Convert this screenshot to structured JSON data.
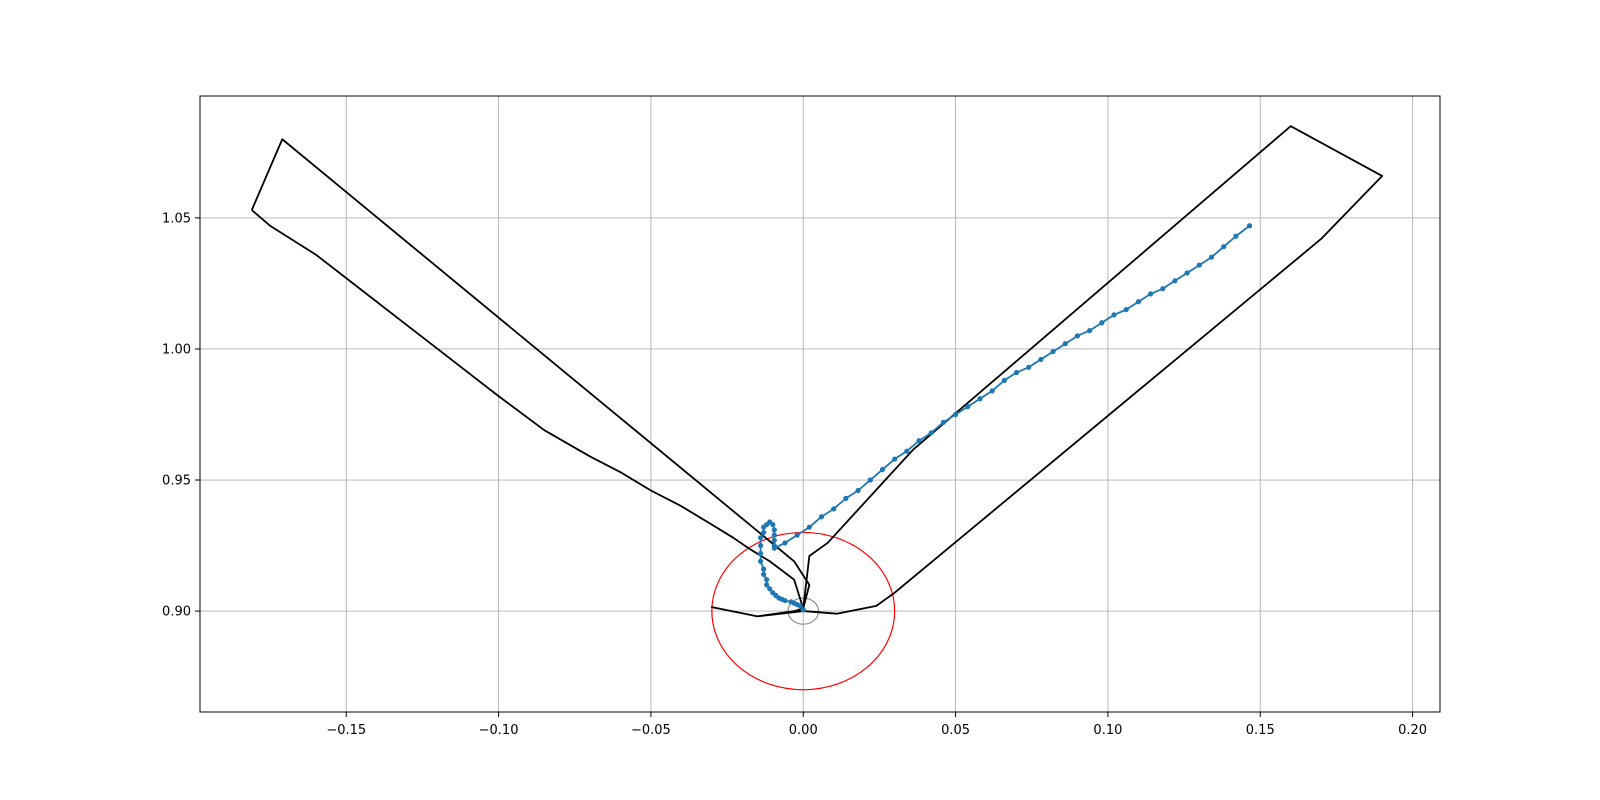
{
  "chart_data": {
    "type": "line",
    "title": "",
    "xlabel": "",
    "ylabel": "",
    "xlim": [
      -0.198,
      0.209
    ],
    "ylim": [
      0.8615,
      1.0965
    ],
    "grid": true,
    "x_ticks": [
      {
        "value": -0.15,
        "label": "−0.15"
      },
      {
        "value": -0.1,
        "label": "−0.10"
      },
      {
        "value": -0.05,
        "label": "−0.05"
      },
      {
        "value": 0.0,
        "label": "0.00"
      },
      {
        "value": 0.05,
        "label": "0.05"
      },
      {
        "value": 0.1,
        "label": "0.10"
      },
      {
        "value": 0.15,
        "label": "0.15"
      },
      {
        "value": 0.2,
        "label": "0.20"
      }
    ],
    "y_ticks": [
      {
        "value": 0.9,
        "label": "0.90"
      },
      {
        "value": 0.95,
        "label": "0.95"
      },
      {
        "value": 1.0,
        "label": "1.00"
      },
      {
        "value": 1.05,
        "label": "1.05"
      }
    ],
    "colors": {
      "outline": "#000000",
      "trajectory": "#1f77b4",
      "target_circle": "#ff0000",
      "small_circle": "#808080",
      "grid": "#b0b0b0"
    },
    "series": [
      {
        "kind": "outline",
        "x": [
          -0.181,
          -0.171,
          -0.003,
          0.002,
          0.0,
          -0.003,
          -0.015,
          -0.03,
          -0.015,
          0.0,
          0.011,
          0.024,
          0.03,
          0.17,
          0.19,
          0.16,
          0.036,
          0.008,
          0.002,
          0.0,
          -0.003,
          -0.011,
          -0.018,
          -0.023,
          -0.03,
          -0.04,
          -0.05,
          -0.06,
          -0.07,
          -0.085,
          -0.1,
          -0.12,
          -0.14,
          -0.16,
          -0.175,
          -0.181
        ],
        "y": [
          1.053,
          1.08,
          0.919,
          0.91,
          0.901,
          0.9,
          0.898,
          0.9015,
          0.898,
          0.9,
          0.899,
          0.902,
          0.907,
          1.042,
          1.066,
          1.085,
          0.9615,
          0.926,
          0.921,
          0.901,
          0.912,
          0.919,
          0.924,
          0.928,
          0.933,
          0.94,
          0.946,
          0.953,
          0.959,
          0.969,
          0.982,
          1.0,
          1.018,
          1.036,
          1.047,
          1.053
        ]
      },
      {
        "kind": "trajectory",
        "x": [
          0.0,
          -0.001,
          -0.002,
          -0.003,
          -0.004,
          -0.006,
          -0.007,
          -0.008,
          -0.009,
          -0.01,
          -0.011,
          -0.012,
          -0.012,
          -0.013,
          -0.013,
          -0.014,
          -0.014,
          -0.014,
          -0.014,
          -0.013,
          -0.013,
          -0.012,
          -0.011,
          -0.01,
          -0.0095,
          -0.0095,
          -0.0095,
          -0.0095,
          -0.0095,
          -0.006,
          -0.002,
          0.002,
          0.006,
          0.01,
          0.014,
          0.018,
          0.022,
          0.026,
          0.03,
          0.034,
          0.038,
          0.042,
          0.046,
          0.05,
          0.054,
          0.058,
          0.062,
          0.066,
          0.07,
          0.074,
          0.078,
          0.082,
          0.086,
          0.09,
          0.094,
          0.098,
          0.102,
          0.106,
          0.11,
          0.114,
          0.118,
          0.122,
          0.126,
          0.13,
          0.134,
          0.138,
          0.142,
          0.1465
        ],
        "y": [
          0.9005,
          0.902,
          0.9025,
          0.903,
          0.9035,
          0.904,
          0.9045,
          0.905,
          0.906,
          0.907,
          0.9085,
          0.91,
          0.912,
          0.914,
          0.916,
          0.919,
          0.922,
          0.925,
          0.928,
          0.93,
          0.932,
          0.933,
          0.934,
          0.933,
          0.931,
          0.929,
          0.927,
          0.925,
          0.924,
          0.926,
          0.929,
          0.932,
          0.936,
          0.939,
          0.943,
          0.946,
          0.95,
          0.954,
          0.958,
          0.961,
          0.965,
          0.968,
          0.972,
          0.975,
          0.978,
          0.981,
          0.984,
          0.988,
          0.991,
          0.993,
          0.996,
          0.999,
          1.002,
          1.005,
          1.007,
          1.01,
          1.013,
          1.015,
          1.018,
          1.021,
          1.023,
          1.026,
          1.029,
          1.032,
          1.035,
          1.039,
          1.043,
          1.047
        ]
      }
    ],
    "circles": [
      {
        "kind": "target",
        "cx": 0.0,
        "cy": 0.9,
        "r": 0.03
      },
      {
        "kind": "small",
        "cx": 0.0,
        "cy": 0.9,
        "r": 0.005
      }
    ]
  }
}
